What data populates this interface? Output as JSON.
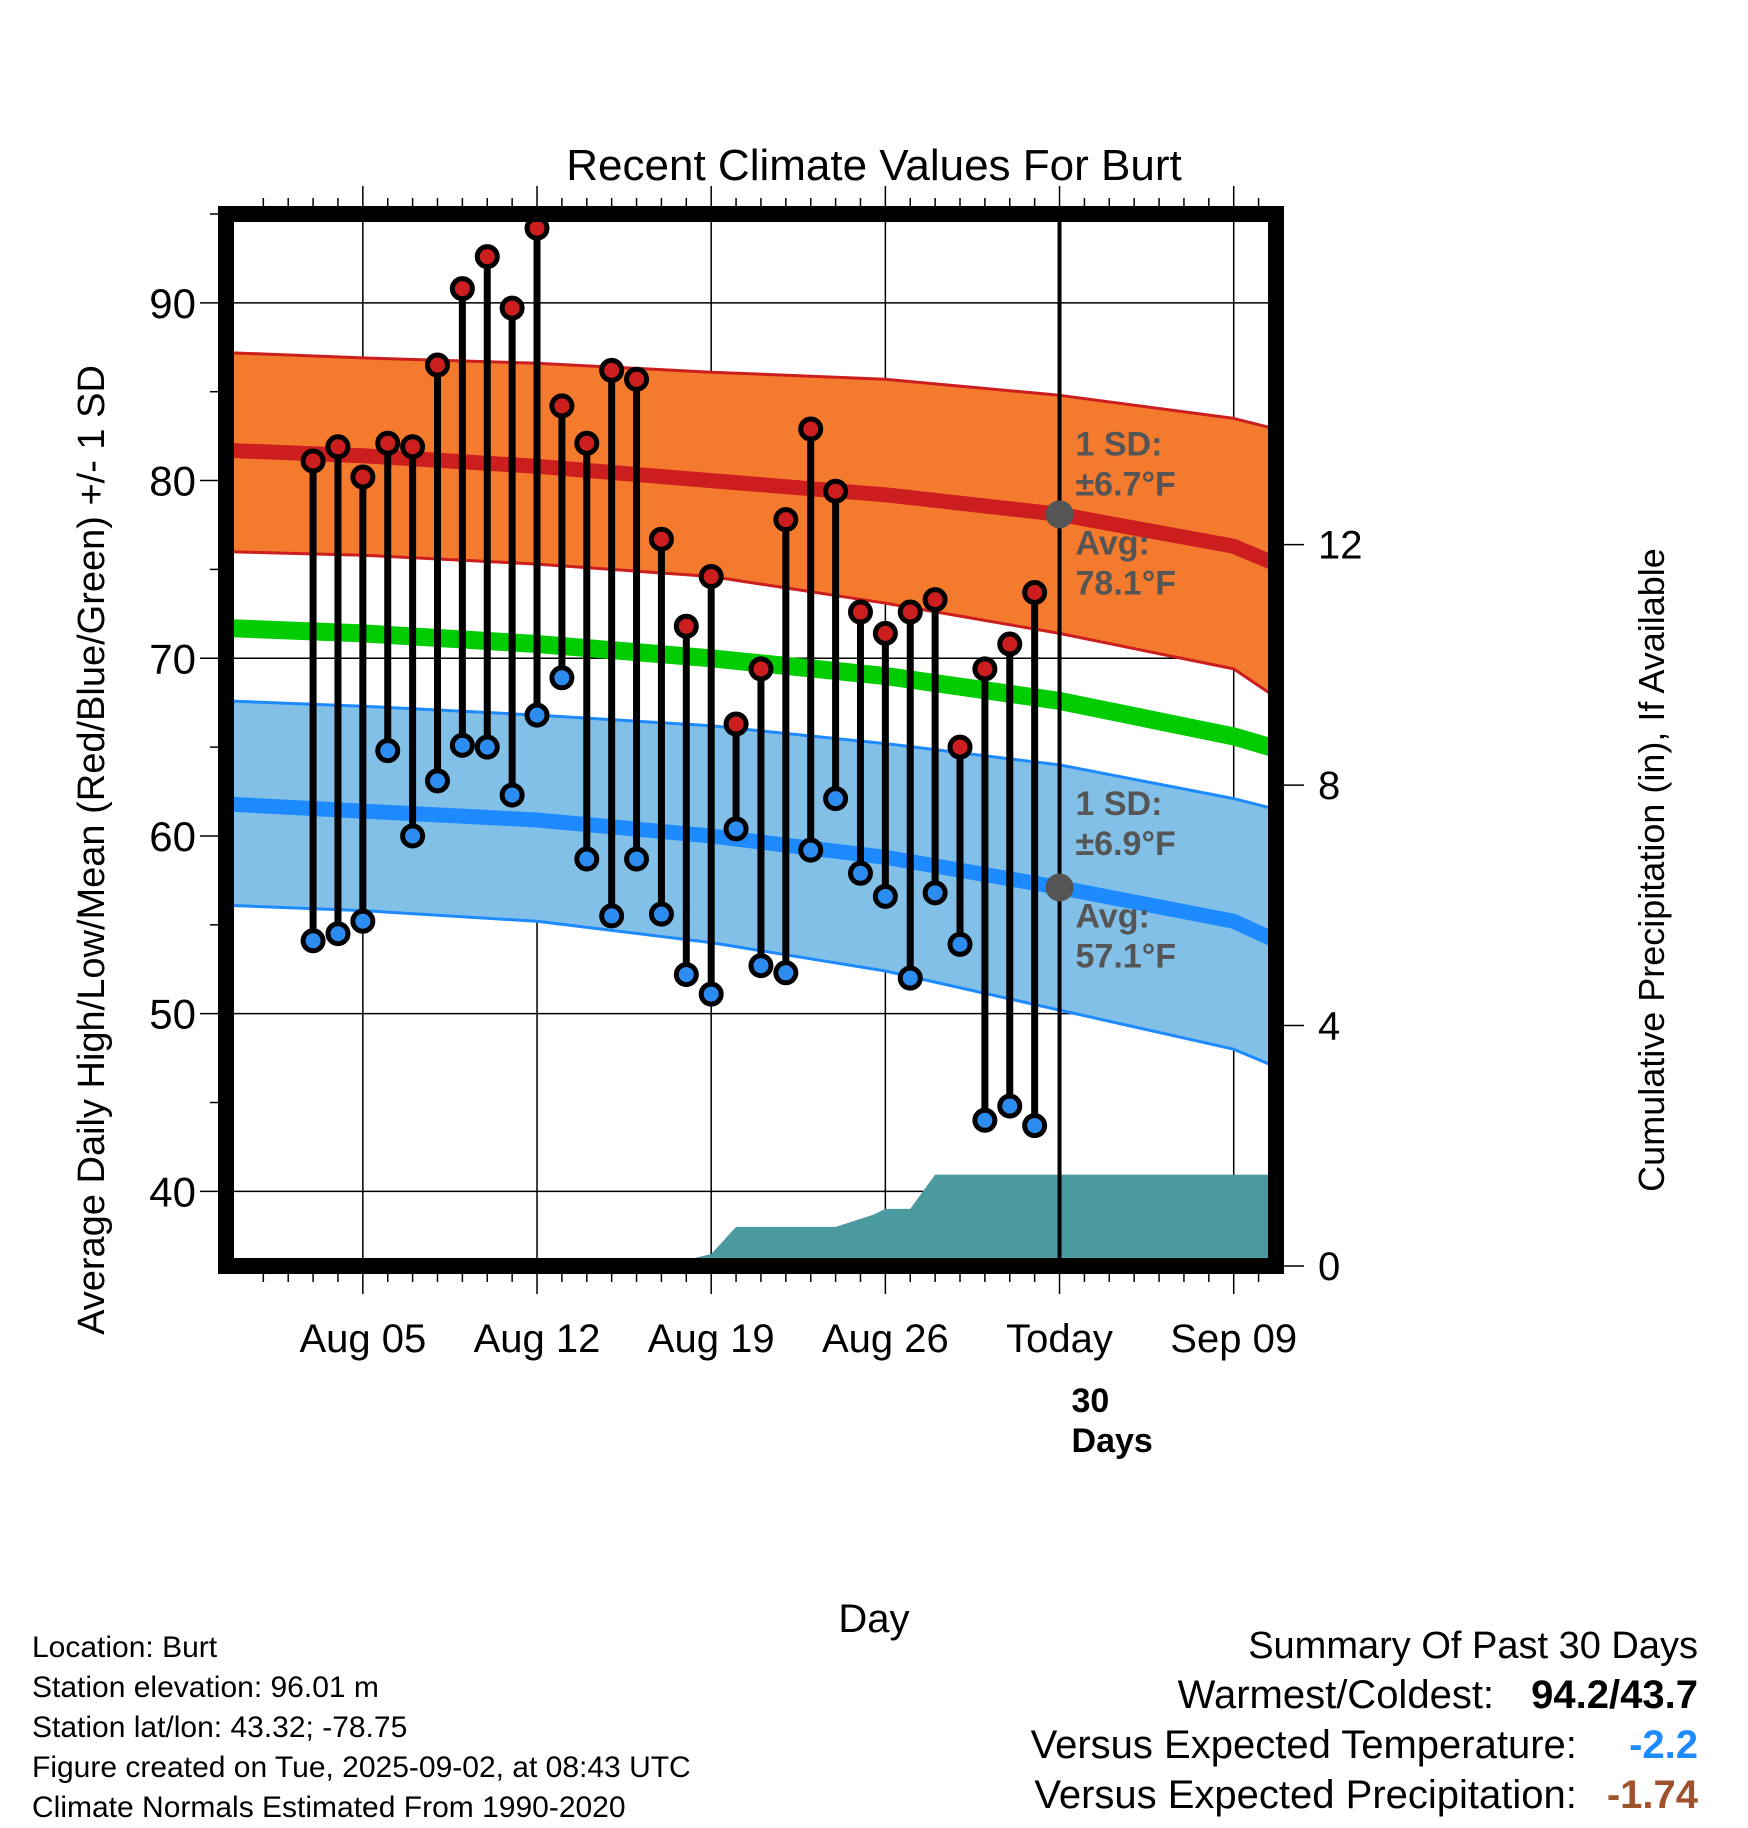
{
  "chart_data": {
    "type": "line",
    "title": "Recent Climate Values For Burt",
    "xlabel": "Day",
    "ylabel": "Average Daily High/Low/Mean (Red/Blue/Green) +/- 1 SD",
    "y2label": "Cumulative Precipitation (in), If Available",
    "ylim": [
      35.8,
      95
    ],
    "y2lim": [
      0,
      17.5
    ],
    "xlim": [
      -1.5,
      40.7
    ],
    "yticks": [
      "40",
      "50",
      "60",
      "70",
      "80",
      "90"
    ],
    "y2ticks": [
      "0",
      "4",
      "8",
      "12"
    ],
    "xticks": [
      {
        "x": 4,
        "label": "Aug 05"
      },
      {
        "x": 11,
        "label": "Aug 12"
      },
      {
        "x": 18,
        "label": "Aug 19"
      },
      {
        "x": 25,
        "label": "Aug 26"
      },
      {
        "x": 32,
        "label": "Today"
      },
      {
        "x": 39,
        "label": "Sep 09"
      }
    ],
    "x_note": "x = day number, Aug 1 = 0",
    "grid": true,
    "today_x": 32,
    "highs": [
      81.1,
      81.9,
      80.2,
      82.1,
      81.9,
      86.5,
      90.8,
      92.6,
      89.7,
      94.2,
      84.2,
      82.1,
      86.2,
      85.7,
      76.7,
      71.8,
      74.6,
      66.3,
      69.4,
      77.8,
      82.9,
      79.4,
      72.6,
      71.4,
      72.6,
      73.3,
      65.0,
      69.4,
      70.8,
      73.7
    ],
    "lows": [
      54.1,
      54.5,
      55.2,
      64.8,
      60.0,
      63.1,
      65.1,
      65.0,
      62.3,
      66.8,
      68.9,
      58.7,
      55.5,
      58.7,
      55.6,
      52.2,
      51.1,
      60.4,
      52.7,
      52.3,
      59.2,
      62.1,
      57.9,
      56.6,
      52.0,
      56.8,
      53.9,
      44.0,
      44.8,
      43.7
    ],
    "normal_high": [
      {
        "x": -1.5,
        "avg": 81.7,
        "sd_lower": 76.0,
        "sd_upper": 87.2
      },
      {
        "x": 4,
        "avg": 81.4,
        "sd_lower": 75.8,
        "sd_upper": 86.9
      },
      {
        "x": 11,
        "avg": 80.8,
        "sd_lower": 75.3,
        "sd_upper": 86.6
      },
      {
        "x": 18,
        "avg": 80.0,
        "sd_lower": 74.6,
        "sd_upper": 86.1
      },
      {
        "x": 25,
        "avg": 79.2,
        "sd_lower": 73.1,
        "sd_upper": 85.7
      },
      {
        "x": 32,
        "avg": 78.1,
        "sd_lower": 71.4,
        "sd_upper": 84.8
      },
      {
        "x": 39,
        "avg": 76.3,
        "sd_lower": 69.4,
        "sd_upper": 83.5
      },
      {
        "x": 40.7,
        "avg": 75.3,
        "sd_lower": 67.8,
        "sd_upper": 82.9
      }
    ],
    "normal_low": [
      {
        "x": -1.5,
        "avg": 61.8,
        "sd_lower": 56.1,
        "sd_upper": 67.6
      },
      {
        "x": 4,
        "avg": 61.4,
        "sd_lower": 55.8,
        "sd_upper": 67.3
      },
      {
        "x": 11,
        "avg": 60.9,
        "sd_lower": 55.2,
        "sd_upper": 66.8
      },
      {
        "x": 18,
        "avg": 60.0,
        "sd_lower": 54.0,
        "sd_upper": 66.2
      },
      {
        "x": 25,
        "avg": 58.8,
        "sd_lower": 52.4,
        "sd_upper": 65.2
      },
      {
        "x": 32,
        "avg": 57.1,
        "sd_lower": 50.2,
        "sd_upper": 64.0
      },
      {
        "x": 39,
        "avg": 55.2,
        "sd_lower": 48.0,
        "sd_upper": 62.1
      },
      {
        "x": 40.7,
        "avg": 54.1,
        "sd_lower": 47.0,
        "sd_upper": 61.5
      }
    ],
    "normal_mean": [
      {
        "x": -1.5,
        "avg": 71.7
      },
      {
        "x": 4,
        "avg": 71.4
      },
      {
        "x": 11,
        "avg": 70.8
      },
      {
        "x": 18,
        "avg": 70.0
      },
      {
        "x": 25,
        "avg": 69.0
      },
      {
        "x": 32,
        "avg": 67.6
      },
      {
        "x": 39,
        "avg": 65.6
      },
      {
        "x": 40.7,
        "avg": 64.9
      }
    ],
    "precip_cumulative": [
      {
        "x": 13.5,
        "v": 0
      },
      {
        "x": 16.5,
        "v": 0.05
      },
      {
        "x": 18.0,
        "v": 0.2
      },
      {
        "x": 19.0,
        "v": 0.65
      },
      {
        "x": 23.0,
        "v": 0.65
      },
      {
        "x": 24.5,
        "v": 0.85
      },
      {
        "x": 25.0,
        "v": 0.95
      },
      {
        "x": 26.0,
        "v": 0.95
      },
      {
        "x": 27.0,
        "v": 1.52
      },
      {
        "x": 40.7,
        "v": 1.52
      }
    ],
    "annotations": {
      "high_sd_label": "1 SD:",
      "high_sd_value": "±6.7°F",
      "high_avg_label": "Avg:",
      "high_avg_value": "78.1°F",
      "low_sd_label": "1 SD:",
      "low_sd_value": "±6.9°F",
      "low_avg_label": "Avg:",
      "low_avg_value": "57.1°F",
      "window_label_1": "30",
      "window_label_2": "Days"
    },
    "colors": {
      "high": "#cc1e1e",
      "high_band": "#f47a2e",
      "low": "#1e8aff",
      "low_band": "#82c0e8",
      "mean": "#00cc00",
      "precip": "#4a9aa0",
      "high_marker": "#cc1e1e",
      "low_marker": "#2d8cf0"
    }
  },
  "footer": {
    "location": "Location: Burt",
    "elevation": "Station elevation: 96.01 m",
    "latlon": "Station lat/lon: 43.32; -78.75",
    "created": "Figure created on Tue, 2025-09-02, at 08:43 UTC",
    "normals": "Climate Normals Estimated From 1990-2020"
  },
  "summary": {
    "heading": "Summary Of Past 30 Days",
    "warmest_coldest_label": "Warmest/Coldest:",
    "warmest_coldest_value": "94.2/43.7",
    "temp_label": "Versus Expected Temperature:",
    "temp_value": "-2.2",
    "precip_label": "Versus Expected Precipitation:",
    "precip_value": "-1.74",
    "temp_color": "#1e8aff",
    "precip_color": "#a0522d"
  }
}
